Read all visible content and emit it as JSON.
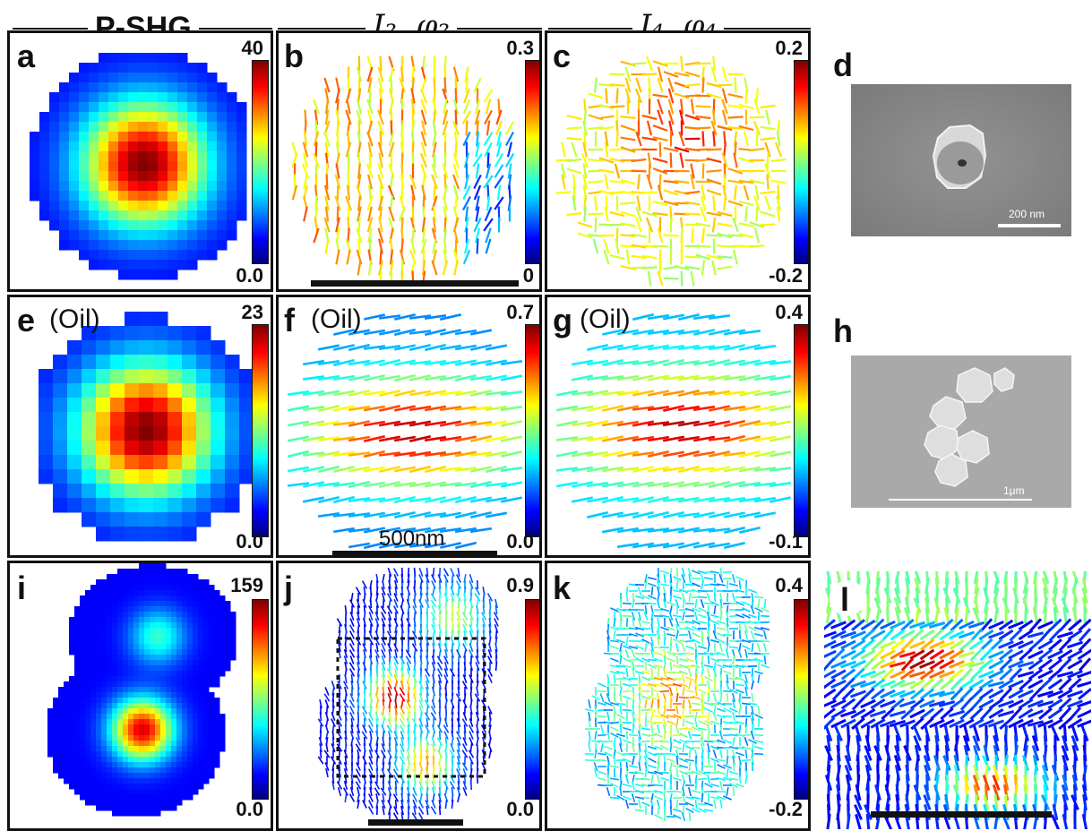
{
  "headers": {
    "pshg": "P-SHG",
    "i2": "I₂, φ₂",
    "i4": "I₄, φ₄"
  },
  "panels": {
    "a": {
      "letter": "a",
      "cmax": "40",
      "cmin": "0.0"
    },
    "b": {
      "letter": "b",
      "cmax": "0.3",
      "cmin": "0"
    },
    "c": {
      "letter": "c",
      "cmax": "0.2",
      "cmin": "-0.2"
    },
    "d": {
      "letter": "d",
      "scalebar": "200 nm"
    },
    "e": {
      "letter": "e",
      "medium": "(Oil)",
      "cmax": "23",
      "cmin": "0.0"
    },
    "f": {
      "letter": "f",
      "medium": "(Oil)",
      "cmax": "0.7",
      "cmin": "0.0",
      "scalebar": "500nm"
    },
    "g": {
      "letter": "g",
      "medium": "(Oil)",
      "cmax": "0.4",
      "cmin": "-0.1"
    },
    "h": {
      "letter": "h",
      "scalebar": "1μm"
    },
    "i": {
      "letter": "i",
      "cmax": "159",
      "cmin": "0.0"
    },
    "j": {
      "letter": "j",
      "cmax": "0.9",
      "cmin": "0.0"
    },
    "k": {
      "letter": "k",
      "cmax": "0.4",
      "cmin": "-0.2"
    },
    "l": {
      "letter": "l"
    }
  },
  "colors": {
    "cmap_low": "#00007f",
    "cmap_mid": "#00ffff",
    "cmap_high": "#7f0000",
    "sem_bg": "#8d8d8d"
  }
}
